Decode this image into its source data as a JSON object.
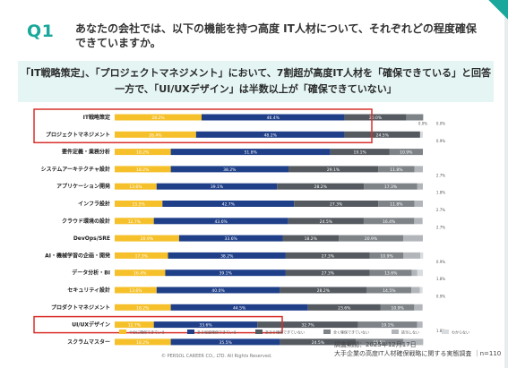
{
  "slide": {
    "q_label": "Q1",
    "question": "あなたの会社では、以下の機能を持つ高度 IT人材について、それぞれどの程度確保できていますか。",
    "banner_line1": "「IT戦略策定」、「プロジェクトマネジメント」において、7割超が高度IT人材を「確保できている」と回答",
    "banner_line2": "一方で、「UI/UXデザイン」は半数以上が「確保できていない」",
    "copyright": "© PERSOL CAREER CO., LTD. All Rights Reserved.",
    "survey_period": "調査期間：2025年12月17日",
    "survey_name": "大手企業の高度IT人材確保戦略に関する実態調査 ｜n=110"
  },
  "chart_data": {
    "type": "bar",
    "orientation": "horizontal",
    "stacked": true,
    "unit": "%",
    "xlim": [
      0,
      100
    ],
    "categories": [
      "IT戦略策定",
      "プロジェクトマネジメント",
      "要件定義・業務分析",
      "システムアーキテクチャ設計",
      "アプリケーション開発",
      "インフラ設計",
      "クラウド環境の設計",
      "DevOps/SRE",
      "AI・機械学習の企画・開発",
      "データ分析・BI",
      "セキュリティ設計",
      "プロダクトマネジメント",
      "UI/UXデザイン",
      "スクラムマスター"
    ],
    "series": [
      {
        "name": "十分に確保できている",
        "color": "#f5c02a",
        "values": [
          28.2,
          26.4,
          18.2,
          18.2,
          13.6,
          15.5,
          12.7,
          20.9,
          17.3,
          16.4,
          13.6,
          18.2,
          12.7,
          18.2
        ]
      },
      {
        "name": "ある程度確保できている",
        "color": "#1f3f88",
        "values": [
          46.4,
          48.2,
          51.8,
          38.2,
          39.1,
          42.7,
          43.6,
          33.6,
          38.2,
          39.1,
          40.0,
          44.5,
          33.6,
          35.5
        ]
      },
      {
        "name": "あまり確保できていない",
        "color": "#555a60",
        "values": [
          20.0,
          24.5,
          19.1,
          29.1,
          28.2,
          27.3,
          24.5,
          18.2,
          27.3,
          27.3,
          28.2,
          23.6,
          32.7,
          24.5
        ]
      },
      {
        "name": "全く確保できていない",
        "color": "#7e8388",
        "values": [
          5.5,
          0.0,
          10.9,
          11.8,
          17.3,
          11.8,
          16.4,
          20.9,
          10.9,
          13.6,
          14.5,
          10.9,
          19.1,
          15.5
        ]
      },
      {
        "name": "該当しない",
        "color": "#b2b6ba",
        "values": [
          0.0,
          0.0,
          0.0,
          2.7,
          1.8,
          2.7,
          2.7,
          6.4,
          5.5,
          1.8,
          2.7,
          2.7,
          1.8,
          6.4
        ]
      },
      {
        "name": "わからない",
        "color": "#d9dcdf",
        "values": [
          0.0,
          0.9,
          0.0,
          0.0,
          0.0,
          0.0,
          0.0,
          0.0,
          0.9,
          1.8,
          0.9,
          0.0,
          0.0,
          0.0
        ]
      }
    ],
    "small_labels": [
      [
        "0.0%",
        "0.0%"
      ],
      [
        "0.9%"
      ],
      [],
      [
        "2.7%"
      ],
      [
        "1.8%"
      ],
      [
        "2.7%"
      ],
      [
        "2.7%"
      ],
      [],
      [
        "0.9%"
      ],
      [
        "1.8%"
      ],
      [
        "0.9%"
      ],
      [],
      [
        "1.8%"
      ],
      []
    ],
    "highlighted": [
      "IT戦略策定",
      "プロジェクトマネジメント",
      "UI/UXデザイン"
    ],
    "legend_position": "bottom",
    "grid": false
  }
}
